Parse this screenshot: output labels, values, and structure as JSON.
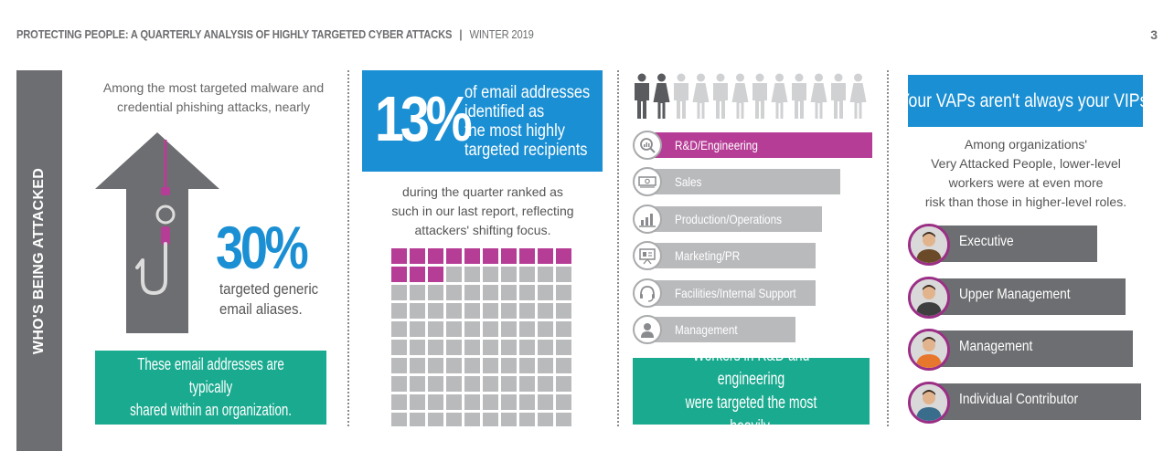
{
  "header": {
    "title": "PROTECTING PEOPLE: A QUARTERLY ANALYSIS OF HIGHLY TARGETED CYBER ATTACKS",
    "separator": "|",
    "season": "WINTER 2019",
    "page_number": "3"
  },
  "sidebar": {
    "label": "WHO'S BEING ATTACKED"
  },
  "col1": {
    "intro_line1": "Among the most targeted malware and",
    "intro_line2": "credential phishing attacks, nearly",
    "stat": "30%",
    "stat_line1": "targeted generic",
    "stat_line2": "email aliases.",
    "box_line1": "These email addresses are typically",
    "box_line2": "shared  within an organization."
  },
  "col2": {
    "stat": "13%",
    "box_line1": "of email addresses",
    "box_line2": "identified as",
    "box_line3": "the most highly",
    "box_line4": "targeted recipients",
    "sub_line1": "during the quarter ranked as",
    "sub_line2": "such in our last report, reflecting",
    "sub_line3": "attackers' shifting focus.",
    "grid_highlighted": 13,
    "grid_total": 100,
    "colors": {
      "highlight": "#b63d96",
      "base": "#b9babc"
    }
  },
  "col3": {
    "people_total": 12,
    "people_highlighted": 2,
    "bars": [
      {
        "label": "R&D/Engineering",
        "icon": "search-graph-icon",
        "value": 1.0,
        "highlight": true
      },
      {
        "label": "Sales",
        "icon": "money-stack-icon",
        "value": 0.86
      },
      {
        "label": "Production/Operations",
        "icon": "bar-chart-icon",
        "value": 0.78
      },
      {
        "label": "Marketing/PR",
        "icon": "presentation-board-icon",
        "value": 0.75
      },
      {
        "label": "Facilities/Internal Support",
        "icon": "headset-icon",
        "value": 0.75
      },
      {
        "label": "Management",
        "icon": "person-icon",
        "value": 0.66
      }
    ],
    "box_line1": "Workers in R&D and engineering",
    "box_line2": "were targeted the most heavily."
  },
  "col4": {
    "headline": "Your VAPs aren't always your VIPs.",
    "sub_line1": "Among organizations'",
    "sub_line2": "Very Attacked People, lower-level",
    "sub_line3": "workers were at even more",
    "sub_line4": "risk than those in higher-level roles.",
    "roles": [
      {
        "label": "Executive",
        "value": 0.78,
        "shirt": "#6b4a2a"
      },
      {
        "label": "Upper Management",
        "value": 0.91,
        "shirt": "#3f3f3f"
      },
      {
        "label": "Management",
        "value": 0.94,
        "shirt": "#e8772e"
      },
      {
        "label": "Individual Contributor",
        "value": 0.98,
        "shirt": "#3a6d8c"
      }
    ]
  }
}
